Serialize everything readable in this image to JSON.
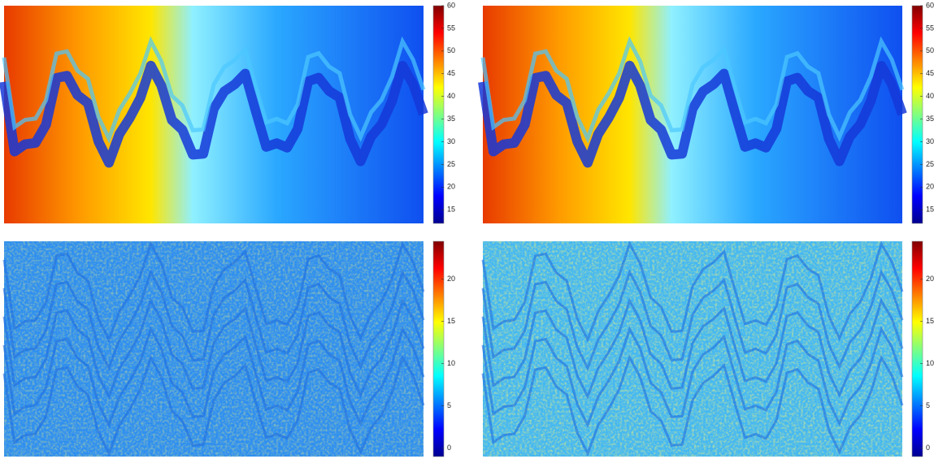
{
  "chart_data": [
    {
      "type": "heatmap",
      "colormap": "jet",
      "clim": [
        12,
        60
      ],
      "cticks": [
        15,
        20,
        25,
        30,
        35,
        40,
        45,
        50,
        55,
        60
      ]
    },
    {
      "type": "heatmap",
      "colormap": "jet",
      "clim": [
        12,
        60
      ],
      "cticks": [
        15,
        20,
        25,
        30,
        35,
        40,
        45,
        50,
        55,
        60
      ]
    },
    {
      "type": "heatmap",
      "colormap": "jet",
      "clim": [
        -1,
        24.5
      ],
      "cticks": [
        0,
        5,
        10,
        15,
        20
      ]
    },
    {
      "type": "heatmap",
      "colormap": "jet",
      "clim": [
        -1,
        24.5
      ],
      "cticks": [
        0,
        5,
        10,
        15,
        20
      ]
    }
  ]
}
